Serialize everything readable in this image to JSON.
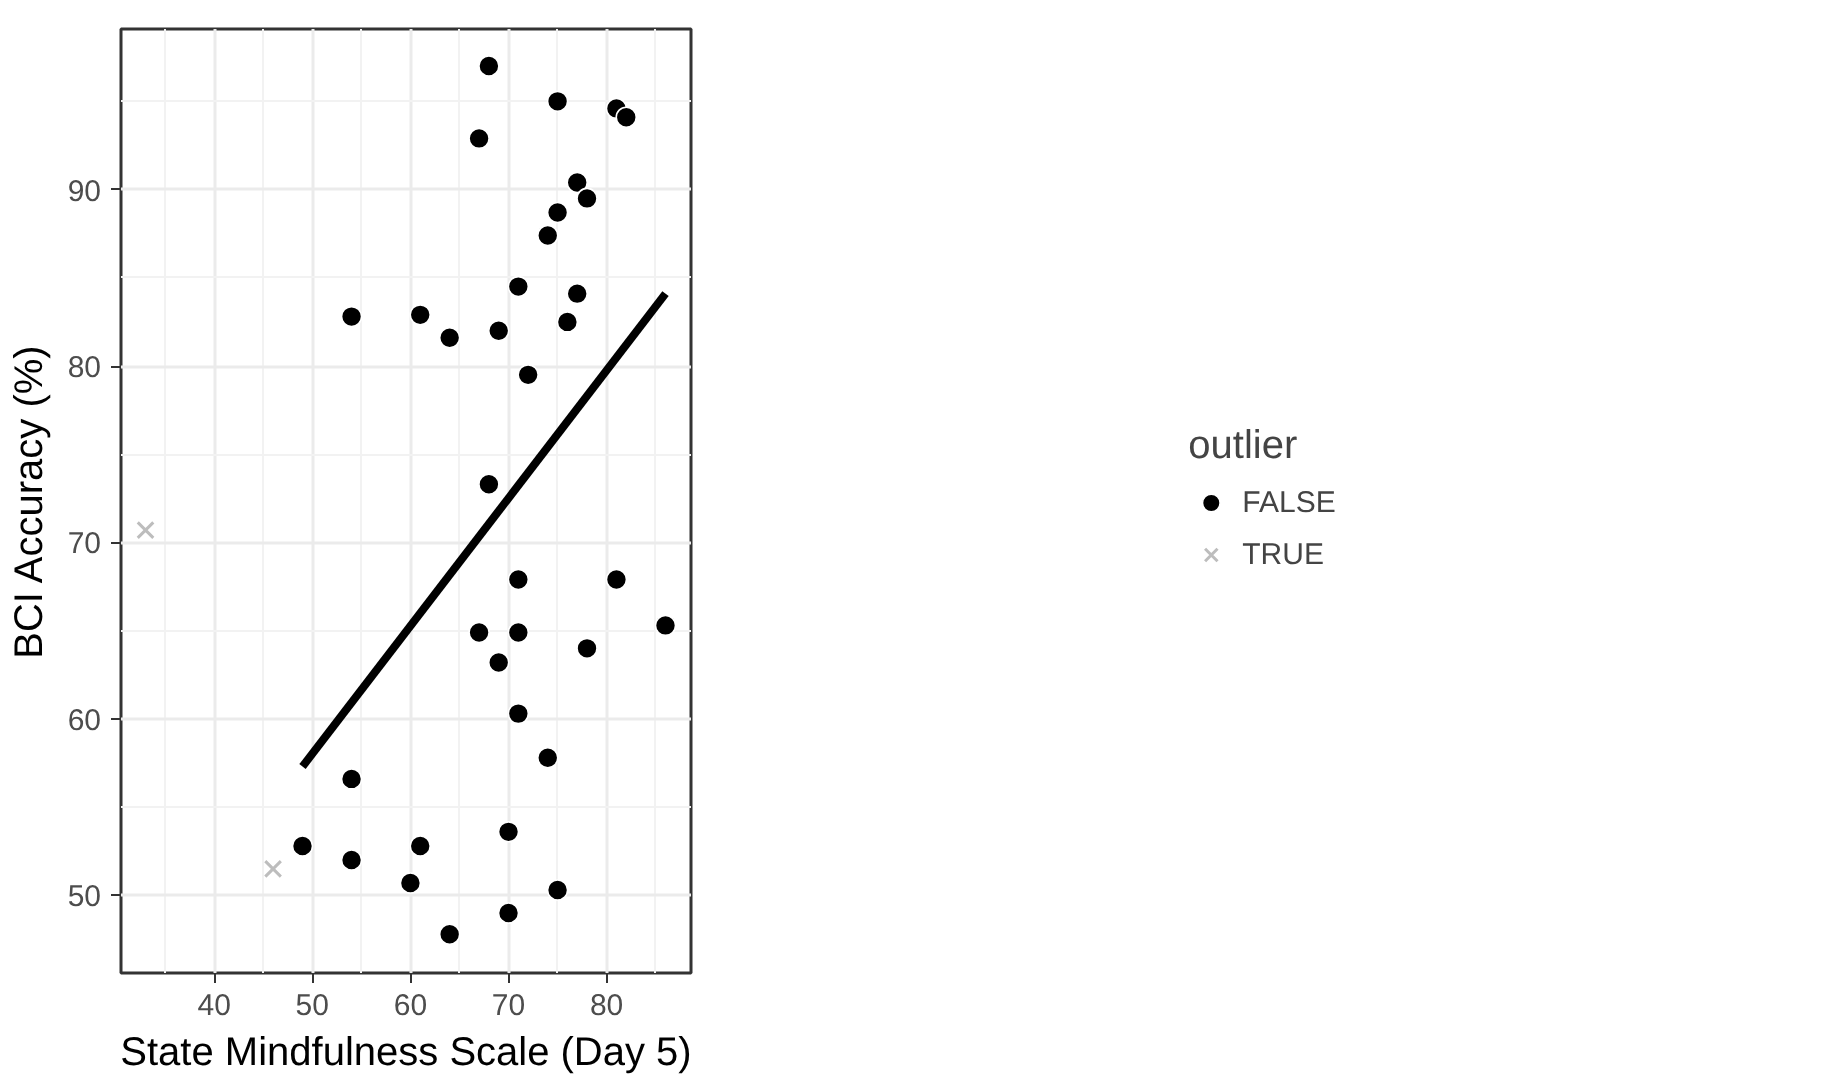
{
  "chart_data": {
    "type": "scatter",
    "xlabel": "State Mindfulness Scale (Day 5)",
    "ylabel": "BCI Accuracy (%)",
    "legend_title": "outlier",
    "legend": "right",
    "grid": true,
    "xlim": [
      30.5,
      88.6
    ],
    "ylim": [
      45.6,
      99.1
    ],
    "xticks": [
      40,
      50,
      60,
      70,
      80
    ],
    "yticks": [
      50,
      60,
      70,
      80,
      90
    ],
    "series": [
      {
        "name": "FALSE",
        "color": "#000000",
        "marker": "circle",
        "x": [
          68,
          75,
          81,
          82,
          67,
          77,
          78,
          75,
          74,
          71,
          77,
          61,
          64,
          69,
          76,
          72,
          68,
          71,
          81,
          86,
          67,
          71,
          69,
          78,
          71,
          74,
          61,
          60,
          64,
          70,
          70,
          75,
          54,
          54,
          49,
          54
        ],
        "values": [
          97.0,
          95.0,
          94.6,
          94.1,
          92.9,
          90.4,
          89.5,
          88.7,
          87.4,
          84.5,
          84.1,
          82.9,
          81.6,
          82.0,
          82.5,
          79.5,
          73.3,
          67.9,
          67.9,
          65.3,
          64.9,
          64.9,
          63.2,
          64.0,
          60.3,
          57.8,
          52.8,
          50.7,
          47.8,
          53.6,
          49.0,
          50.3,
          82.8,
          56.6,
          52.8,
          52.0
        ]
      },
      {
        "name": "TRUE",
        "color": "#bdbdbd",
        "marker": "cross",
        "x": [
          33,
          46
        ],
        "values": [
          70.7,
          51.5
        ]
      },
      {
        "type": "line",
        "color": "#000000",
        "x": [
          49,
          86
        ],
        "values": [
          57.3,
          84.1
        ]
      }
    ]
  }
}
